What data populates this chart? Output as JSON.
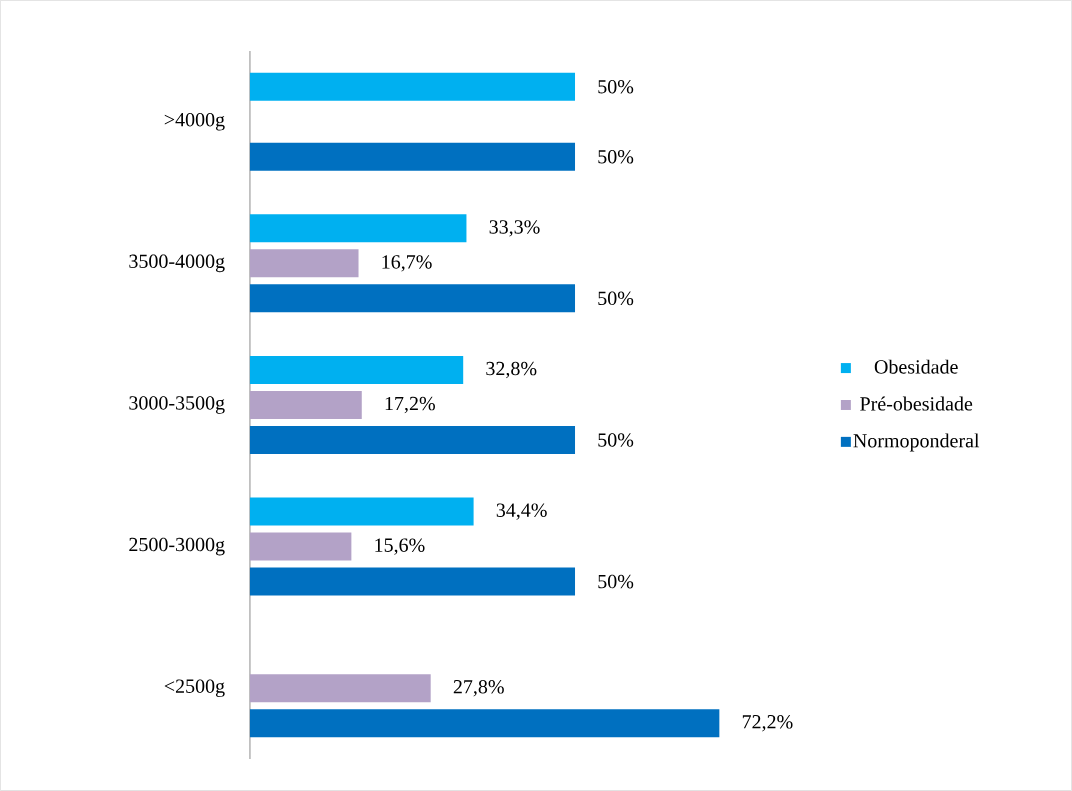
{
  "chart_data": {
    "type": "bar",
    "orientation": "horizontal",
    "legend": "right",
    "categories": [
      ">4000g",
      "3500-4000g",
      "3000-3500g",
      "2500-3000g",
      "<2500g"
    ],
    "series": [
      {
        "name": "Obesidade",
        "color": "#00b0f0",
        "values": [
          50,
          33.3,
          32.8,
          34.4,
          null
        ],
        "value_labels": [
          "50%",
          "33,3%",
          "32,8%",
          "34,4%",
          null
        ]
      },
      {
        "name": "Pré-obesidade",
        "color": "#b3a2c7",
        "values": [
          null,
          16.7,
          17.2,
          15.6,
          27.8
        ],
        "value_labels": [
          null,
          "16,7%",
          "17,2%",
          "15,6%",
          "27,8%"
        ]
      },
      {
        "name": "Normoponderal",
        "color": "#0070c0",
        "values": [
          50,
          50,
          50,
          50,
          72.2
        ],
        "value_labels": [
          "50%",
          "50%",
          "50%",
          "50%",
          "72,2%"
        ]
      }
    ]
  }
}
